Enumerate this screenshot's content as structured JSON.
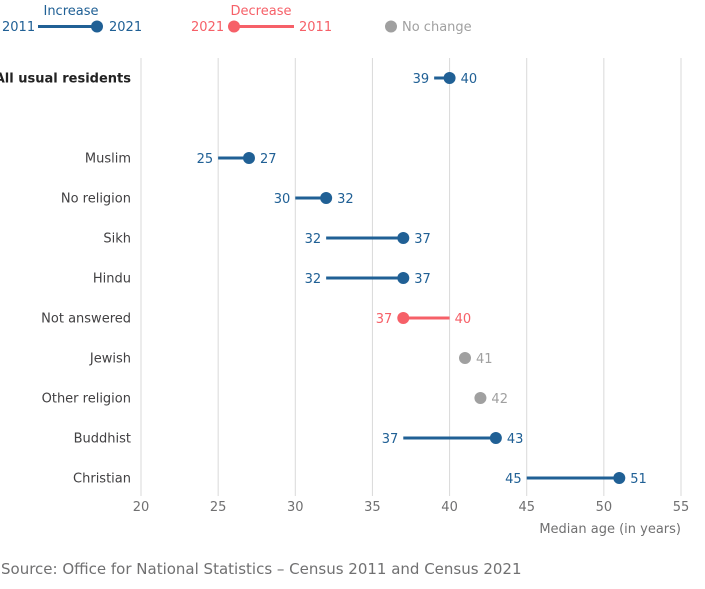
{
  "legend": {
    "increase": {
      "title": "Increase",
      "from": "2011",
      "to": "2021"
    },
    "decrease": {
      "title": "Decrease",
      "from": "2021",
      "to": "2011"
    },
    "no_change": {
      "label": "No change"
    }
  },
  "colors": {
    "increase": "#206095",
    "decrease": "#f66068",
    "no_change": "#a0a0a0",
    "grid": "#d9d9d9"
  },
  "source": "Source: Office for National Statistics – Census 2011 and Census 2021",
  "chart_data": {
    "type": "dumbbell",
    "title": "",
    "xlabel": "Median age (in years)",
    "ylabel": "",
    "xlim": [
      20,
      55
    ],
    "x_ticks": [
      20,
      25,
      30,
      35,
      40,
      45,
      50,
      55
    ],
    "grid": true,
    "legend_position": "top-left",
    "series": [
      {
        "name": "2011"
      },
      {
        "name": "2021"
      }
    ],
    "categories": [
      "All usual residents",
      "Muslim",
      "No religion",
      "Sikh",
      "Hindu",
      "Not answered",
      "Jewish",
      "Other religion",
      "Buddhist",
      "Christian"
    ],
    "rows": [
      {
        "category": "All usual residents",
        "y2011": 39,
        "y2021": 40,
        "bold": true
      },
      {
        "category": "Muslim",
        "y2011": 25,
        "y2021": 27
      },
      {
        "category": "No religion",
        "y2011": 30,
        "y2021": 32
      },
      {
        "category": "Sikh",
        "y2011": 32,
        "y2021": 37
      },
      {
        "category": "Hindu",
        "y2011": 32,
        "y2021": 37
      },
      {
        "category": "Not answered",
        "y2011": 40,
        "y2021": 37
      },
      {
        "category": "Jewish",
        "y2011": 41,
        "y2021": 41
      },
      {
        "category": "Other religion",
        "y2011": 42,
        "y2021": 42
      },
      {
        "category": "Buddhist",
        "y2011": 37,
        "y2021": 43
      },
      {
        "category": "Christian",
        "y2011": 45,
        "y2021": 51
      }
    ]
  }
}
